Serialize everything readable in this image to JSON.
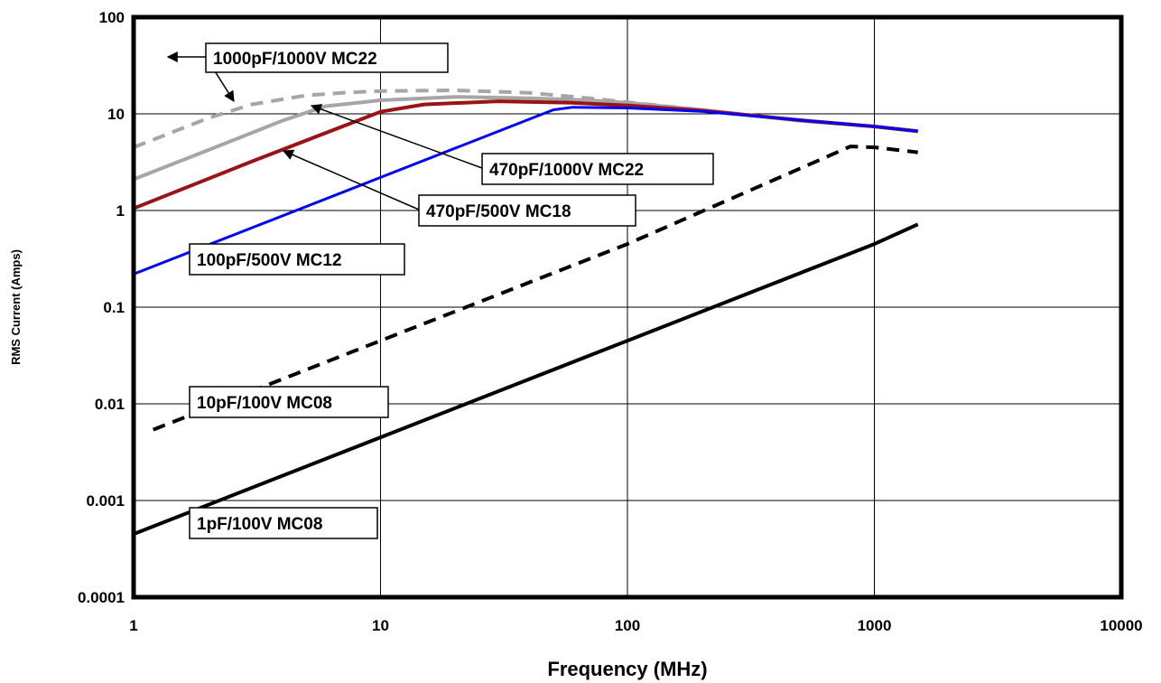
{
  "chart_data": {
    "type": "line",
    "xlabel": "Frequency (MHz)",
    "ylabel": "RMS Current (Amps)",
    "x_scale": "log",
    "y_scale": "log",
    "xlim": [
      1,
      10000
    ],
    "ylim": [
      0.0001,
      100
    ],
    "x_ticks": [
      "1",
      "10",
      "100",
      "1000",
      "10000"
    ],
    "y_ticks": [
      "100",
      "10",
      "1",
      "0.1",
      "0.01",
      "0.001",
      "0.0001"
    ],
    "grid": true,
    "series": [
      {
        "name": "1000pF/1000V MC22",
        "color": "#a6a6a6",
        "style": "dashed",
        "x": [
          1,
          2,
          3,
          5,
          7,
          10,
          20,
          40,
          70,
          100,
          200,
          500,
          1000,
          1500
        ],
        "y": [
          4.5,
          9.0,
          12.5,
          15.5,
          16.5,
          17.2,
          17.5,
          16.5,
          14.5,
          13.2,
          11.0,
          8.5,
          7.4,
          6.6
        ]
      },
      {
        "name": "470pF/1000V MC22",
        "color": "#a6a6a6",
        "style": "solid",
        "x": [
          1,
          2,
          4,
          6,
          10,
          20,
          40,
          70,
          100,
          200,
          500,
          1000,
          1500
        ],
        "y": [
          2.1,
          4.2,
          8.5,
          12.0,
          13.8,
          15.0,
          14.5,
          13.8,
          13.0,
          11.0,
          8.5,
          7.4,
          6.6
        ]
      },
      {
        "name": "470pF/500V MC18",
        "color": "#9a1414",
        "style": "solid",
        "x": [
          1,
          3,
          10,
          15,
          30,
          60,
          100,
          200,
          500,
          1000,
          1500
        ],
        "y": [
          1.05,
          3.2,
          10.5,
          12.5,
          13.5,
          13.0,
          12.2,
          10.8,
          8.6,
          7.4,
          6.6
        ]
      },
      {
        "name": "100pF/500V MC12",
        "color": "#0000ff",
        "style": "solid",
        "x": [
          1,
          10,
          50,
          60,
          100,
          200,
          500,
          1000,
          1500
        ],
        "y": [
          0.22,
          2.2,
          11.0,
          11.7,
          11.5,
          10.6,
          8.6,
          7.4,
          6.6
        ]
      },
      {
        "name": "10pF/100V MC08",
        "color": "#000000",
        "style": "dashed",
        "x": [
          1.2,
          10,
          100,
          800,
          1000,
          1500
        ],
        "y": [
          0.0054,
          0.045,
          0.45,
          4.6,
          4.5,
          4.0
        ]
      },
      {
        "name": "1pF/100V MC08",
        "color": "#000000",
        "style": "solid",
        "x": [
          1,
          10,
          100,
          1000,
          1500
        ],
        "y": [
          0.00045,
          0.0045,
          0.045,
          0.45,
          0.72
        ]
      }
    ]
  }
}
